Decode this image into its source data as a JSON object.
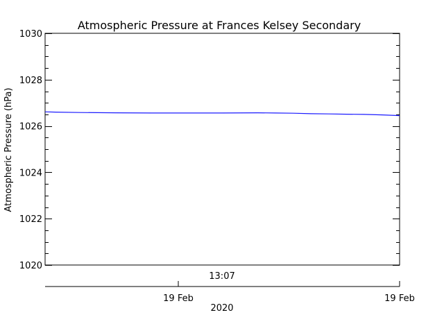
{
  "chart_data": {
    "type": "line",
    "title": "Atmospheric Pressure at Frances Kelsey Secondary",
    "ylabel": "Atmospheric Pressure (hPa)",
    "ylim": [
      1020,
      1030
    ],
    "yticks": [
      1020,
      1022,
      1024,
      1026,
      1028,
      1030
    ],
    "xlabels": {
      "time_label": "13:07",
      "date_labels": [
        "19 Feb",
        "19 Feb"
      ],
      "year_label": "2020"
    },
    "grid": false,
    "series": [
      {
        "color": "#1a1aff",
        "x": [
          0,
          0.03,
          0.1,
          0.2,
          0.3,
          0.4,
          0.5,
          0.6,
          0.65,
          0.7,
          0.75,
          0.8,
          0.85,
          0.9,
          0.95,
          1.0
        ],
        "y": [
          1026.61,
          1026.6,
          1026.58,
          1026.57,
          1026.56,
          1026.56,
          1026.56,
          1026.57,
          1026.56,
          1026.55,
          1026.53,
          1026.52,
          1026.51,
          1026.5,
          1026.48,
          1026.45
        ]
      }
    ]
  }
}
